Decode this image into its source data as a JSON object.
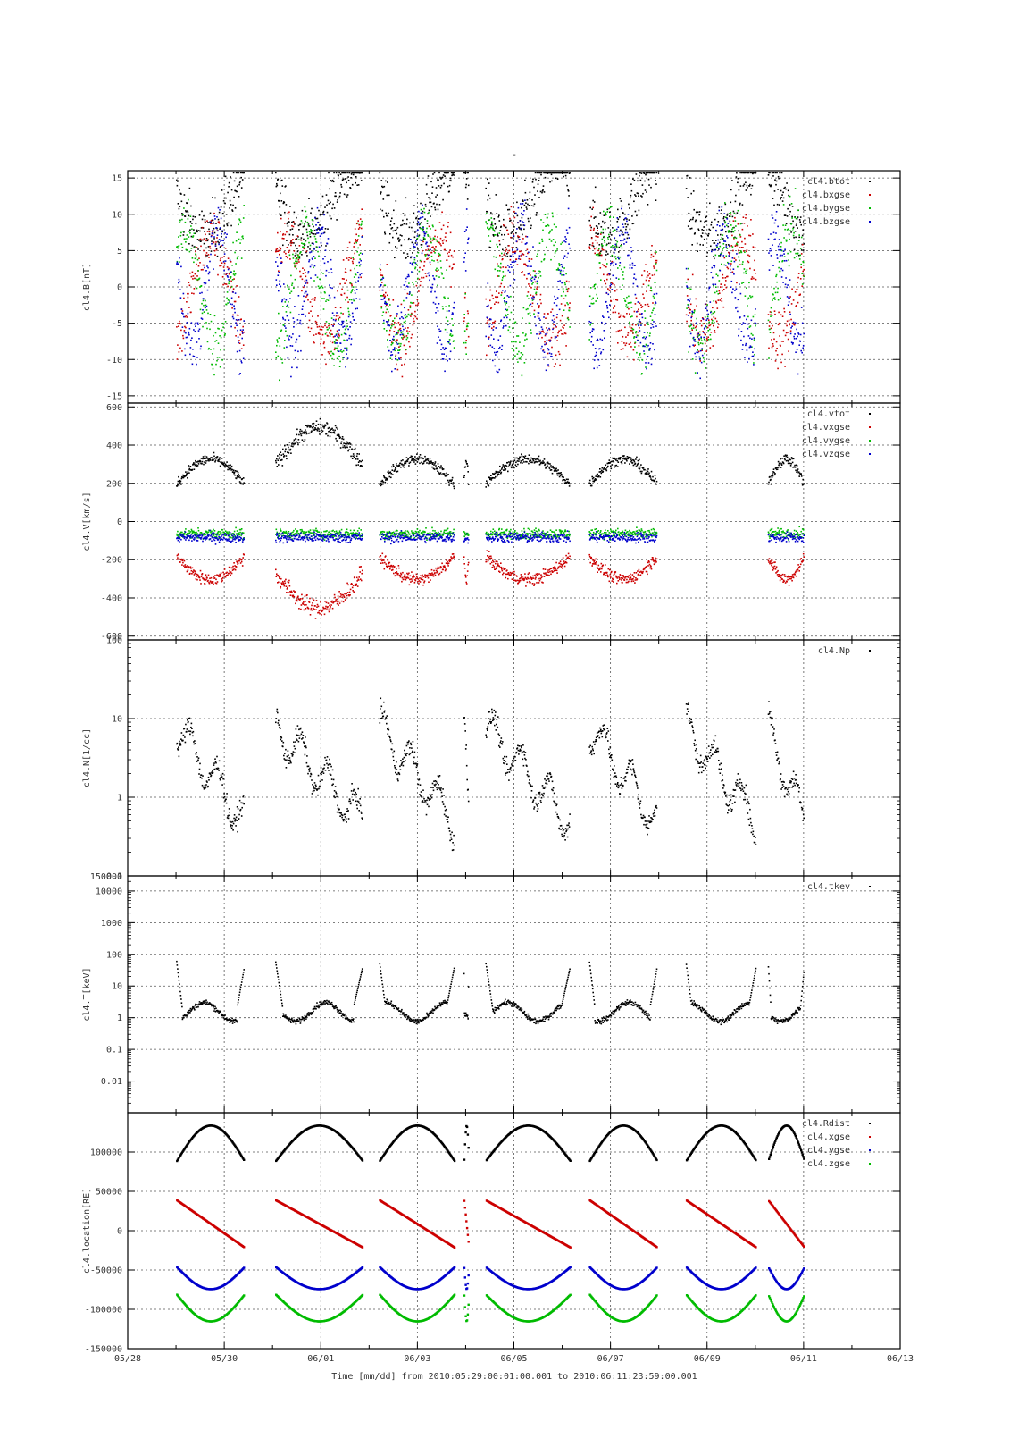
{
  "chart_data": {
    "title": "-",
    "x_label": "Time [mm/dd]  from 2010:05:29:00:01:00.001  to  2010:06:11:23:59:00.001",
    "x_range": [
      "05/28",
      "06/13"
    ],
    "x_ticks": [
      "05/28",
      "05/30",
      "06/01",
      "06/03",
      "06/05",
      "06/07",
      "06/09",
      "06/11",
      "06/13"
    ],
    "data_segments_days": [
      [
        1.0,
        2.4
      ],
      [
        3.05,
        4.85
      ],
      [
        5.2,
        6.75
      ],
      [
        6.95,
        7.05
      ],
      [
        7.4,
        9.15
      ],
      [
        9.55,
        10.95
      ],
      [
        11.55,
        13.0
      ],
      [
        13.25,
        14.0
      ]
    ],
    "panels": [
      {
        "type": "scatter",
        "ylabel": "cl4.B[nT]",
        "scale": "linear",
        "ylim": [
          -16,
          16
        ],
        "yticks": [
          -15,
          -10,
          -5,
          0,
          5,
          10,
          15
        ],
        "series": [
          {
            "name": "cl4.btot",
            "color": "#000000"
          },
          {
            "name": "cl4.bxgse",
            "color": "#cc0000"
          },
          {
            "name": "cl4.bygse",
            "color": "#00bb00"
          },
          {
            "name": "cl4.bzgse",
            "color": "#0000cc"
          }
        ]
      },
      {
        "type": "scatter",
        "ylabel": "cl4.V[km/s]",
        "scale": "linear",
        "ylim": [
          -620,
          620
        ],
        "yticks": [
          -600,
          -400,
          -200,
          0,
          200,
          400,
          600
        ],
        "series": [
          {
            "name": "cl4.vtot",
            "color": "#000000"
          },
          {
            "name": "cl4.vxgse",
            "color": "#cc0000"
          },
          {
            "name": "cl4.vygse",
            "color": "#00bb00"
          },
          {
            "name": "cl4.vzgse",
            "color": "#0000cc"
          }
        ]
      },
      {
        "type": "scatter",
        "ylabel": "cl4.N[1/cc]",
        "scale": "log",
        "ylim": [
          0.1,
          100
        ],
        "yticks": [
          0.1,
          1,
          10,
          100
        ],
        "ytick_labels": [
          "0.1",
          "1",
          "10",
          "100"
        ],
        "series": [
          {
            "name": "cl4.Np",
            "color": "#000000"
          }
        ]
      },
      {
        "type": "scatter",
        "ylabel": "cl4.T[keV]",
        "scale": "log",
        "ylim": [
          0.001,
          30000
        ],
        "yticks": [
          0.01,
          0.1,
          1,
          10,
          100,
          1000,
          10000
        ],
        "ytick_labels": [
          "0.01",
          "0.1",
          "1",
          "10",
          "100",
          "1000",
          "10000"
        ],
        "extra_tick_label": "150000",
        "series": [
          {
            "name": "cl4.tkev",
            "color": "#000000"
          }
        ]
      },
      {
        "type": "scatter",
        "ylabel": "cl4.location[RE]",
        "scale": "linear",
        "ylim": [
          -150000,
          150000
        ],
        "yticks": [
          -150000,
          -100000,
          -50000,
          0,
          50000,
          100000,
          150000
        ],
        "ytick_labels": [
          "-150000",
          "-100000",
          "-50000",
          "0",
          "50000",
          "100000",
          ""
        ],
        "series": [
          {
            "name": "cl4.Rdist",
            "color": "#000000"
          },
          {
            "name": "cl4.xgse",
            "color": "#cc0000"
          },
          {
            "name": "cl4.ygse",
            "color": "#0000cc"
          },
          {
            "name": "cl4.zgse",
            "color": "#00bb00"
          }
        ]
      }
    ]
  }
}
